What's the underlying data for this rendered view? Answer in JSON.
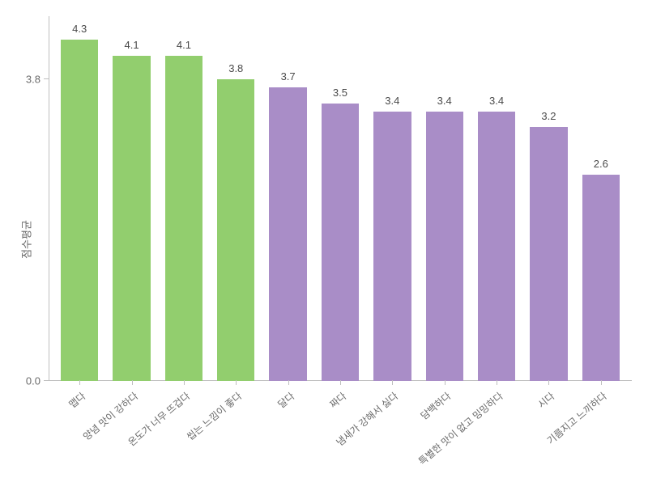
{
  "chart": {
    "type": "bar",
    "y_axis_label": "점수평균",
    "y_ticks": [
      0.0,
      3.8
    ],
    "y_tick_labels": [
      "0.0",
      "3.8"
    ],
    "y_max": 4.6,
    "colors": {
      "group_a": "#92ce6e",
      "group_b": "#a98dc7",
      "axis": "#bfbfbf",
      "text": "#4a4a4a",
      "muted_text": "#6a6a6a",
      "background": "#ffffff"
    },
    "bar_width_ratio": 0.72,
    "value_fontsize": 13,
    "label_fontsize": 12,
    "axis_label_fontsize": 13,
    "x_label_rotation_deg": -40,
    "bars": [
      {
        "label": "맵다",
        "value": 4.3,
        "display": "4.3",
        "color": "#92ce6e"
      },
      {
        "label": "양념 맛이 강하다",
        "value": 4.1,
        "display": "4.1",
        "color": "#92ce6e"
      },
      {
        "label": "온도가 너무 뜨겁다",
        "value": 4.1,
        "display": "4.1",
        "color": "#92ce6e"
      },
      {
        "label": "씹는 느낌이 좋다",
        "value": 3.8,
        "display": "3.8",
        "color": "#92ce6e"
      },
      {
        "label": "달다",
        "value": 3.7,
        "display": "3.7",
        "color": "#a98dc7"
      },
      {
        "label": "짜다",
        "value": 3.5,
        "display": "3.5",
        "color": "#a98dc7"
      },
      {
        "label": "냄새가 강해서 싫다",
        "value": 3.4,
        "display": "3.4",
        "color": "#a98dc7"
      },
      {
        "label": "담백하다",
        "value": 3.4,
        "display": "3.4",
        "color": "#a98dc7"
      },
      {
        "label": "특별한 맛이 없고 밍밍하다",
        "value": 3.4,
        "display": "3.4",
        "color": "#a98dc7"
      },
      {
        "label": "시다",
        "value": 3.2,
        "display": "3.2",
        "color": "#a98dc7"
      },
      {
        "label": "기름지고 느끼하다",
        "value": 2.6,
        "display": "2.6",
        "color": "#a98dc7"
      }
    ]
  }
}
